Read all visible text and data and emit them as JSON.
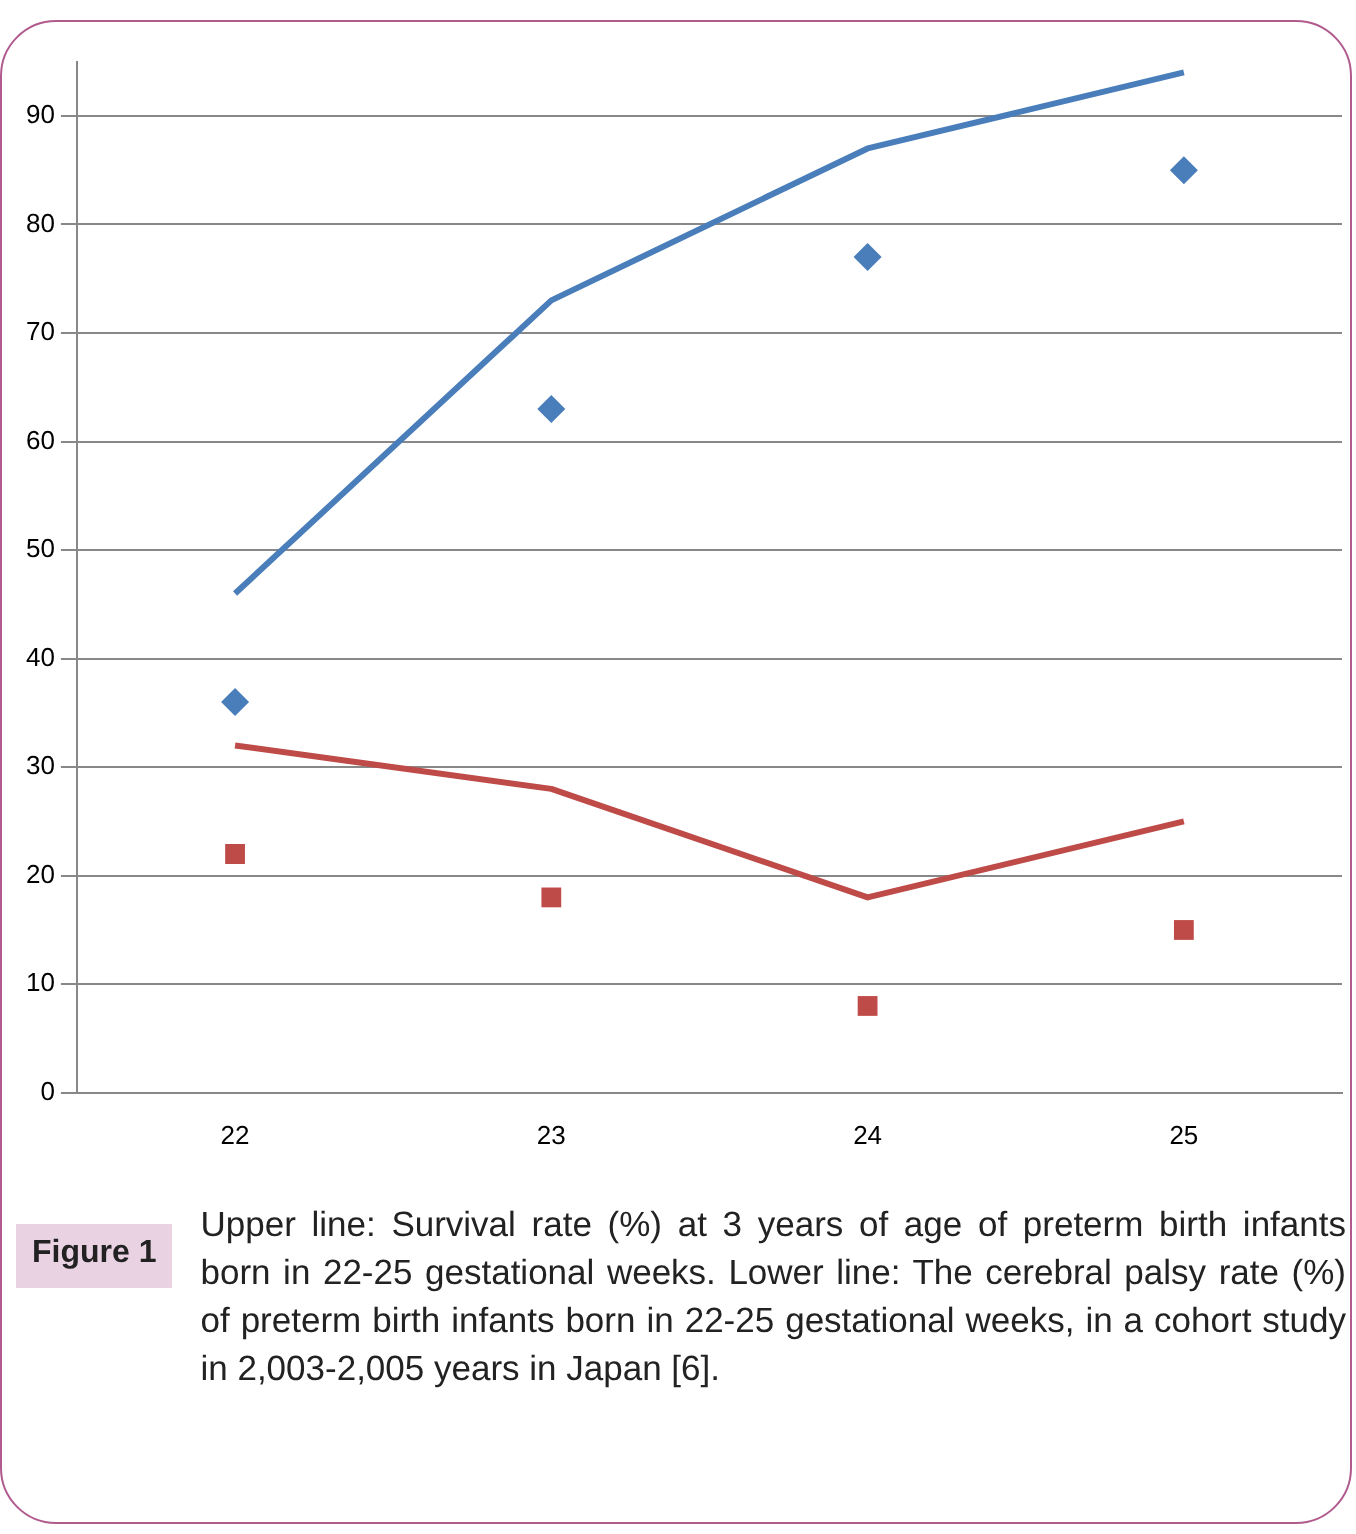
{
  "chart_data": {
    "type": "line",
    "categories": [
      "22",
      "23",
      "24",
      "25"
    ],
    "series": [
      {
        "type": "line",
        "color": "#4a7ebb",
        "marker": "none",
        "values": [
          46,
          73,
          87,
          94
        ]
      },
      {
        "type": "scatter",
        "color": "#4a7ebb",
        "marker": "diamond",
        "values": [
          36,
          63,
          77,
          85
        ]
      },
      {
        "type": "line",
        "color": "#be4b48",
        "marker": "none",
        "values": [
          32,
          28,
          18,
          25
        ]
      },
      {
        "type": "scatter",
        "color": "#be4b48",
        "marker": "square",
        "values": [
          22,
          18,
          8,
          15
        ]
      }
    ],
    "ylim": [
      0,
      95
    ],
    "yticks": [
      0,
      10,
      20,
      30,
      40,
      50,
      60,
      70,
      80,
      90
    ],
    "grid": "y",
    "legend": false,
    "annotations": [
      "Figure 1",
      "Upper line: Survival rate (%) at 3 years of age of preterm birth infants born in 22-25 gestational weeks. Lower line: The cerebral palsy rate (%) of preterm birth infants born in 22-25 gestational weeks, in a cohort study in 2,003-2,005 years in Japan [6]."
    ]
  }
}
